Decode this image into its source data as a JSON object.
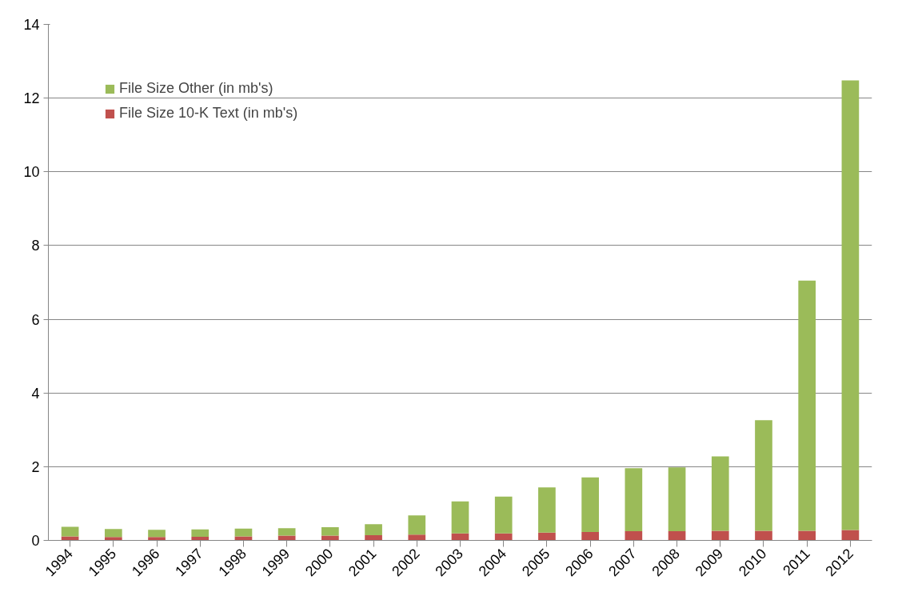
{
  "chart_data": {
    "type": "bar",
    "stacked": true,
    "categories": [
      "1994",
      "1995",
      "1996",
      "1997",
      "1998",
      "1999",
      "2000",
      "2001",
      "2002",
      "2003",
      "2004",
      "2005",
      "2006",
      "2007",
      "2008",
      "2009",
      "2010",
      "2011",
      "2012"
    ],
    "series": [
      {
        "name": "File Size 10-K Text (in mb's)",
        "color": "#c0504d",
        "values": [
          0.11,
          0.09,
          0.09,
          0.1,
          0.11,
          0.13,
          0.13,
          0.14,
          0.16,
          0.19,
          0.19,
          0.21,
          0.23,
          0.25,
          0.25,
          0.26,
          0.26,
          0.26,
          0.28
        ]
      },
      {
        "name": "File Size Other (in mb's)",
        "color": "#9bbb59",
        "values": [
          0.26,
          0.22,
          0.2,
          0.2,
          0.21,
          0.2,
          0.23,
          0.3,
          0.52,
          0.87,
          1.0,
          1.23,
          1.48,
          1.71,
          1.73,
          2.02,
          3.0,
          6.79,
          12.2
        ]
      }
    ],
    "ylim": [
      0,
      14
    ],
    "yticks": [
      0,
      2,
      4,
      6,
      8,
      10,
      12,
      14
    ],
    "grid": "y",
    "legend": "top left"
  }
}
